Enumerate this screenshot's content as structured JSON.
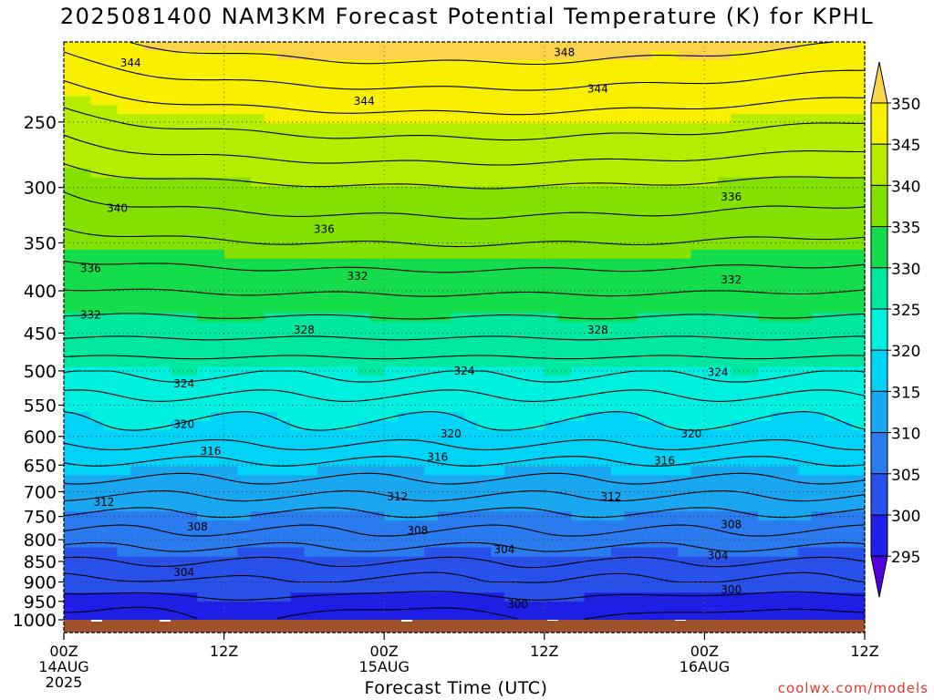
{
  "title": "2025081400 NAM3KM Forecast Potential Temperature (K) for KPHL",
  "xlabel": "Forecast Time (UTC)",
  "credit": "coolwx.com/models",
  "chart_data": {
    "type": "heatmap",
    "variable": "Potential Temperature (K)",
    "y_ticks": [
      "250",
      "300",
      "350",
      "400",
      "450",
      "500",
      "550",
      "600",
      "650",
      "700",
      "750",
      "800",
      "850",
      "900",
      "950",
      "1000"
    ],
    "y_tick_values": [
      250,
      300,
      350,
      400,
      450,
      500,
      550,
      600,
      650,
      700,
      750,
      800,
      850,
      900,
      950,
      1000
    ],
    "y_range": [
      200,
      1000
    ],
    "y_scale": "log",
    "x_ticks": [
      {
        "hour": 0,
        "label": "00Z",
        "sub": "14AUG",
        "sub2": "2025"
      },
      {
        "hour": 12,
        "label": "12Z",
        "sub": "",
        "sub2": ""
      },
      {
        "hour": 24,
        "label": "00Z",
        "sub": "15AUG",
        "sub2": ""
      },
      {
        "hour": 36,
        "label": "12Z",
        "sub": "",
        "sub2": ""
      },
      {
        "hour": 48,
        "label": "00Z",
        "sub": "16AUG",
        "sub2": ""
      },
      {
        "hour": 60,
        "label": "12Z",
        "sub": "",
        "sub2": ""
      }
    ],
    "x_range": [
      0,
      60
    ],
    "grid": true,
    "colorbar": {
      "labels": [
        "350",
        "345",
        "340",
        "335",
        "330",
        "325",
        "320",
        "315",
        "310",
        "305",
        "300",
        "295"
      ],
      "bins": [
        {
          "low": 290,
          "high": 295,
          "color": "#4f00dc"
        },
        {
          "low": 295,
          "high": 300,
          "color": "#1e1ee6"
        },
        {
          "low": 300,
          "high": 305,
          "color": "#2850ea"
        },
        {
          "low": 305,
          "high": 310,
          "color": "#2a7cee"
        },
        {
          "low": 310,
          "high": 315,
          "color": "#1aa7f0"
        },
        {
          "low": 315,
          "high": 320,
          "color": "#00d2f8"
        },
        {
          "low": 320,
          "high": 325,
          "color": "#00f0e0"
        },
        {
          "low": 325,
          "high": 330,
          "color": "#00e8a0"
        },
        {
          "low": 330,
          "high": 335,
          "color": "#14dc4a"
        },
        {
          "low": 335,
          "high": 340,
          "color": "#84e000"
        },
        {
          "low": 340,
          "high": 345,
          "color": "#b6ec00"
        },
        {
          "low": 345,
          "high": 350,
          "color": "#f8f000"
        },
        {
          "low": 350,
          "high": 355,
          "color": "#fad34a"
        }
      ]
    },
    "contour_labels": [
      {
        "value": "348",
        "hour": 37.5,
        "p": 206
      },
      {
        "value": "344",
        "hour": 5.0,
        "p": 212
      },
      {
        "value": "344",
        "hour": 22.5,
        "p": 236
      },
      {
        "value": "344",
        "hour": 40.0,
        "p": 228
      },
      {
        "value": "340",
        "hour": 4.0,
        "p": 318
      },
      {
        "value": "336",
        "hour": 19.5,
        "p": 337
      },
      {
        "value": "336",
        "hour": 50.0,
        "p": 308
      },
      {
        "value": "336",
        "hour": 2.0,
        "p": 376
      },
      {
        "value": "332",
        "hour": 22.0,
        "p": 384
      },
      {
        "value": "332",
        "hour": 50.0,
        "p": 388
      },
      {
        "value": "332",
        "hour": 2.0,
        "p": 428
      },
      {
        "value": "328",
        "hour": 18.0,
        "p": 446
      },
      {
        "value": "328",
        "hour": 40.0,
        "p": 446
      },
      {
        "value": "324",
        "hour": 9.0,
        "p": 518
      },
      {
        "value": "324",
        "hour": 30.0,
        "p": 500
      },
      {
        "value": "324",
        "hour": 49.0,
        "p": 502
      },
      {
        "value": "320",
        "hour": 9.0,
        "p": 580
      },
      {
        "value": "320",
        "hour": 29.0,
        "p": 596
      },
      {
        "value": "320",
        "hour": 47.0,
        "p": 596
      },
      {
        "value": "316",
        "hour": 11.0,
        "p": 625
      },
      {
        "value": "316",
        "hour": 28.0,
        "p": 636
      },
      {
        "value": "316",
        "hour": 45.0,
        "p": 642
      },
      {
        "value": "312",
        "hour": 3.0,
        "p": 721
      },
      {
        "value": "312",
        "hour": 25.0,
        "p": 710
      },
      {
        "value": "312",
        "hour": 41.0,
        "p": 710
      },
      {
        "value": "308",
        "hour": 10.0,
        "p": 772
      },
      {
        "value": "308",
        "hour": 26.5,
        "p": 780
      },
      {
        "value": "308",
        "hour": 50.0,
        "p": 767
      },
      {
        "value": "304",
        "hour": 9.0,
        "p": 876
      },
      {
        "value": "304",
        "hour": 33.0,
        "p": 822
      },
      {
        "value": "304",
        "hour": 49.0,
        "p": 836
      },
      {
        "value": "300",
        "hour": 34.0,
        "p": 958
      },
      {
        "value": "300",
        "hour": 50.0,
        "p": 920
      }
    ],
    "terrain_color": "#a0522d"
  }
}
